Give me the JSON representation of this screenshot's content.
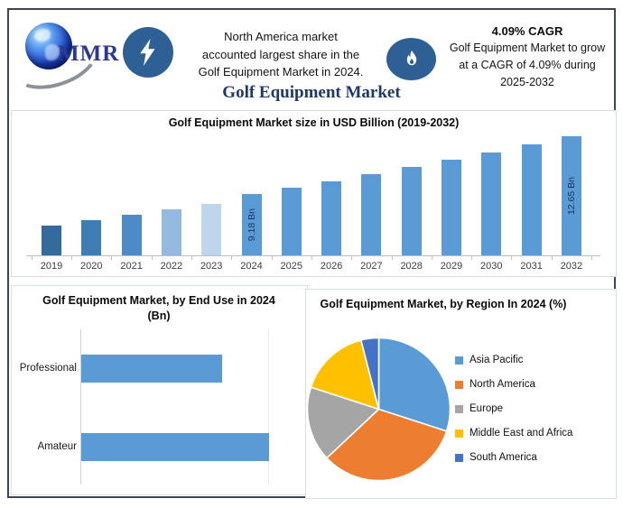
{
  "header": {
    "logo_text": "MMR",
    "note_lines": [
      "North America market",
      "accounted largest share in the",
      "Golf Equipment Market in 2024."
    ],
    "cagr_heading": "4.09% CAGR",
    "cagr_lines": [
      "Golf Equipment Market to grow",
      "at a CAGR of 4.09% during",
      "2025-2032"
    ]
  },
  "title": "Golf Equipment Market",
  "colors": {
    "accent_badge_blue": "#2E6096",
    "title_navy": "#1F3864",
    "logo_navy": "#2B3A8F",
    "bar_blue": "#5B9BD5"
  },
  "chart_data": [
    {
      "type": "bar",
      "title": "Golf Equipment Market size in USD Billion (2019-2032)",
      "categories": [
        "2019",
        "2020",
        "2021",
        "2022",
        "2023",
        "2024",
        "2025",
        "2026",
        "2027",
        "2028",
        "2029",
        "2030",
        "2031",
        "2032"
      ],
      "values": [
        7.3,
        7.61,
        7.92,
        8.25,
        8.58,
        9.18,
        9.56,
        9.95,
        10.35,
        10.78,
        11.22,
        11.68,
        12.15,
        12.65
      ],
      "unit": "USD Billion",
      "value_labels": {
        "2024": "9.18 Bn",
        "2032": "12.65 Bn"
      },
      "bar_colors": [
        "#336B9B",
        "#3F7EB5",
        "#4D8BC6",
        "#94BADF",
        "#BFD5EC",
        "#5B9BD5",
        "#5B9BD5",
        "#5B9BD5",
        "#5B9BD5",
        "#5B9BD5",
        "#5B9BD5",
        "#5B9BD5",
        "#5B9BD5",
        "#5B9BD5"
      ],
      "ylim": [
        5.5,
        12.9
      ],
      "grid": false,
      "xlabel": "",
      "ylabel": ""
    },
    {
      "type": "bar",
      "orientation": "horizontal",
      "title": "Golf Equipment Market, by End Use in 2024 (Bn)",
      "categories": [
        "Professional",
        "Amateur"
      ],
      "values": [
        3.9,
        5.2
      ],
      "xlim": [
        0,
        6.3
      ],
      "bar_color": "#5B9BD5",
      "grid": false
    },
    {
      "type": "pie",
      "title": "Golf Equipment Market, by Region In 2024 (%)",
      "labels": [
        "Asia Pacific",
        "North America",
        "Europe",
        "Middle East and Africa",
        "South America"
      ],
      "values": [
        30,
        33,
        17,
        16,
        4
      ],
      "colors": [
        "#5B9BD5",
        "#ED7D31",
        "#A5A5A5",
        "#FFC000",
        "#4472C4"
      ],
      "legend_position": "right"
    }
  ]
}
